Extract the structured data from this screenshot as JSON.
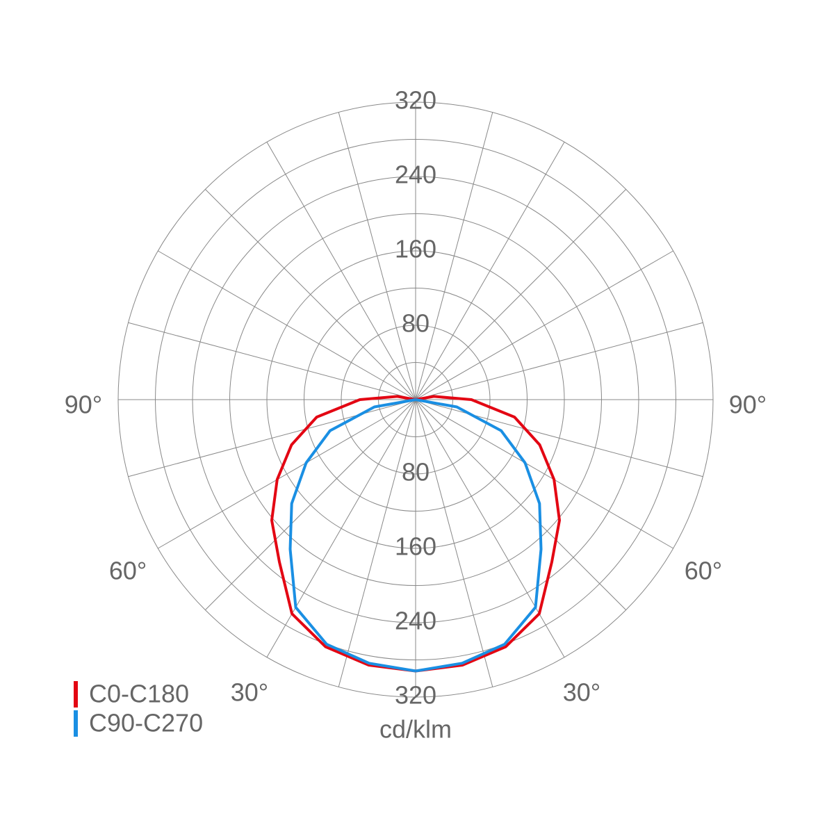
{
  "chart_data": {
    "type": "polar",
    "x": [
      0,
      10,
      20,
      30,
      40,
      50,
      60,
      70,
      80,
      90,
      100,
      110
    ],
    "series": [
      {
        "name": "C0-C180",
        "color": "#e30613",
        "values": [
          292,
          290,
          283,
          266,
          228,
          202,
          172,
          142,
          108,
          60,
          20,
          0
        ]
      },
      {
        "name": "C90-C270",
        "color": "#1a8fe3",
        "values": [
          292,
          288,
          280,
          258,
          210,
          174,
          136,
          98,
          45,
          0,
          null,
          null
        ]
      }
    ],
    "rlim": [
      0,
      320
    ],
    "rgrid": [
      40,
      80,
      120,
      160,
      200,
      240,
      280,
      320
    ],
    "rticks": [
      80,
      160,
      240,
      320
    ],
    "angle_grid": [
      0,
      15,
      30,
      45,
      60,
      75,
      90,
      105,
      120,
      135,
      150,
      165,
      180
    ],
    "angle_ticks": [
      {
        "value": 30,
        "label": "30°"
      },
      {
        "value": 60,
        "label": "60°"
      },
      {
        "value": 90,
        "label": "90°"
      }
    ],
    "unit_label": "cd/klm"
  }
}
